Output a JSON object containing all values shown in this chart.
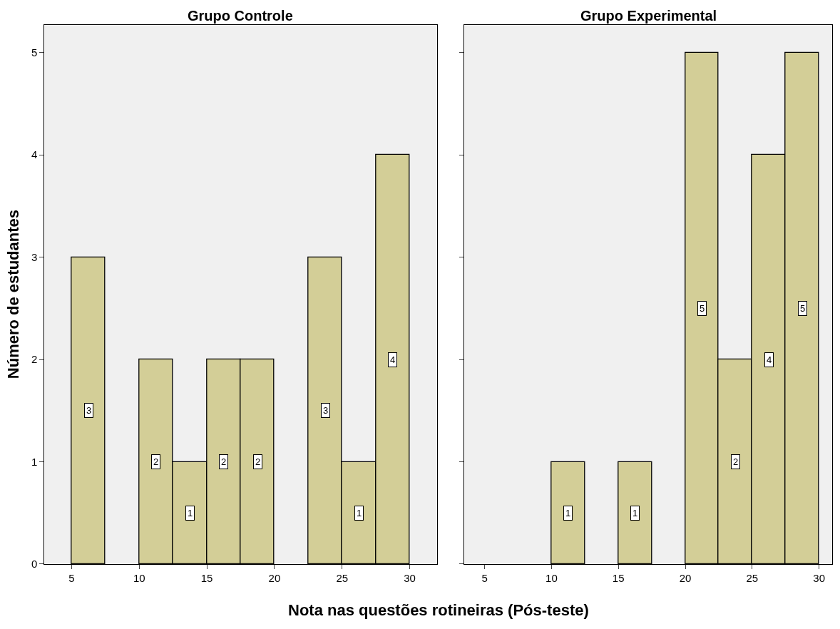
{
  "chart_data": [
    {
      "type": "histogram",
      "title": "Grupo Controle",
      "xlabel": "Nota nas questões rotineiras (Pós-teste)",
      "ylabel": "Número de estudantes",
      "bins": [
        5,
        7.5,
        10,
        12.5,
        15,
        17.5,
        20,
        22.5,
        25,
        27.5,
        30
      ],
      "values": [
        3,
        0,
        2,
        1,
        2,
        2,
        0,
        3,
        1,
        4
      ],
      "value_labels": [
        "3",
        null,
        "2",
        "1",
        "2",
        "2",
        null,
        "3",
        "1",
        "4"
      ],
      "color": "#d3ce97",
      "xlim": [
        3,
        32
      ],
      "xticks": [
        5,
        10,
        15,
        20,
        25,
        30
      ],
      "ylim": [
        0,
        5.27
      ],
      "yticks": [
        0,
        1,
        2,
        3,
        4,
        5
      ],
      "grid": false
    },
    {
      "type": "histogram",
      "title": "Grupo Experimental",
      "bins": [
        5,
        7.5,
        10,
        12.5,
        15,
        17.5,
        20,
        22.5,
        25,
        27.5,
        30
      ],
      "values": [
        0,
        0,
        1,
        0,
        1,
        0,
        5,
        2,
        4,
        5
      ],
      "value_labels": [
        null,
        null,
        "1",
        null,
        "1",
        null,
        "5",
        "2",
        "4",
        "5"
      ],
      "color": "#d3ce97",
      "xlim": [
        3.5,
        31
      ],
      "xticks": [
        5,
        10,
        15,
        20,
        25,
        30
      ],
      "ylim": [
        0,
        5.27
      ],
      "yticks": [
        0,
        1,
        2,
        3,
        4,
        5
      ],
      "grid": false,
      "tick_labels": "x"
    }
  ]
}
